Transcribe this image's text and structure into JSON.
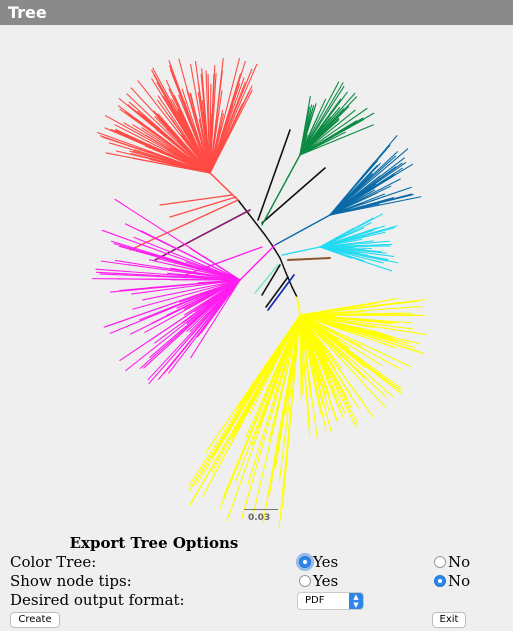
{
  "window": {
    "title": "Tree"
  },
  "tree": {
    "scale_label": "0.03",
    "clade_colors": {
      "red": "#ff4b45",
      "green": "#0b8a43",
      "blue": "#0a6aa6",
      "cyan": "#22dbf2",
      "yellow": "#ffff00",
      "magenta": "#ff1cf0",
      "purple": "#8a1a6e",
      "black": "#111111",
      "brown": "#8b5a2b",
      "mint": "#7fe8c2",
      "navy": "#1a2fb8"
    }
  },
  "export": {
    "title": "Export Tree Options",
    "color_tree": {
      "label": "Color Tree:",
      "yes": "Yes",
      "no": "No",
      "selected": "Yes"
    },
    "node_tips": {
      "label": "Show node tips:",
      "yes": "Yes",
      "no": "No",
      "selected": "No"
    },
    "format": {
      "label": "Desired output format:",
      "value": "PDF"
    },
    "create_label": "Create",
    "exit_label": "Exit"
  }
}
